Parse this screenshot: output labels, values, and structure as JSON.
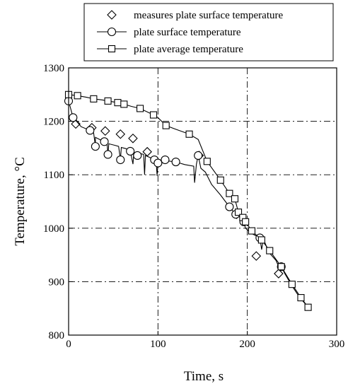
{
  "chart_data": {
    "type": "scatter",
    "title": "",
    "xlabel": "Time, s",
    "ylabel": "Temperature, °C",
    "xlim": [
      0,
      300
    ],
    "ylim": [
      800,
      1300
    ],
    "xticks": [
      "0",
      "100",
      "200",
      "300"
    ],
    "yticks": [
      "800",
      "900",
      "1000",
      "1100",
      "1200",
      "1300"
    ],
    "grid": "dash-dot",
    "legend_position": "top-right",
    "series": [
      {
        "name": "measures plate surface temperature",
        "marker": "diamond",
        "line": false,
        "points": [
          [
            8,
            1195
          ],
          [
            26,
            1188
          ],
          [
            41,
            1182
          ],
          [
            58,
            1176
          ],
          [
            72,
            1168
          ],
          [
            88,
            1143
          ],
          [
            146,
            1136
          ],
          [
            188,
            1026
          ],
          [
            210,
            948
          ],
          [
            235,
            915
          ]
        ]
      },
      {
        "name": "plate surface temperature",
        "marker": "circle",
        "line": true,
        "points": [
          [
            0,
            1238
          ],
          [
            5,
            1207
          ],
          [
            10,
            1198
          ],
          [
            14,
            1190
          ],
          [
            24,
            1183
          ],
          [
            28,
            1178
          ],
          [
            30,
            1153
          ],
          [
            30,
            1170
          ],
          [
            36,
            1165
          ],
          [
            40,
            1162
          ],
          [
            43,
            1160
          ],
          [
            44,
            1138
          ],
          [
            45,
            1158
          ],
          [
            52,
            1155
          ],
          [
            56,
            1153
          ],
          [
            58,
            1128
          ],
          [
            59,
            1151
          ],
          [
            64,
            1149
          ],
          [
            69,
            1144
          ],
          [
            72,
            1120
          ],
          [
            73,
            1142
          ],
          [
            77,
            1136
          ],
          [
            80,
            1140
          ],
          [
            84,
            1138
          ],
          [
            85,
            1100
          ],
          [
            86,
            1136
          ],
          [
            94,
            1130
          ],
          [
            96,
            1128
          ],
          [
            98,
            1125
          ],
          [
            99,
            1098
          ],
          [
            100,
            1122
          ],
          [
            104,
            1126
          ],
          [
            108,
            1128
          ],
          [
            110,
            1126
          ],
          [
            120,
            1124
          ],
          [
            130,
            1119
          ],
          [
            140,
            1116
          ],
          [
            141,
            1085
          ],
          [
            143,
            1120
          ],
          [
            145,
            1136
          ],
          [
            148,
            1112
          ],
          [
            153,
            1105
          ],
          [
            160,
            1082
          ],
          [
            170,
            1062
          ],
          [
            180,
            1040
          ],
          [
            187,
            1026
          ],
          [
            192,
            1020
          ],
          [
            196,
            1012
          ],
          [
            198,
            1000
          ],
          [
            205,
            990
          ],
          [
            214,
            982
          ],
          [
            216,
            960
          ],
          [
            218,
            980
          ],
          [
            224,
            955
          ],
          [
            232,
            940
          ],
          [
            236,
            925
          ],
          [
            238,
            928
          ],
          [
            242,
            915
          ],
          [
            250,
            892
          ],
          [
            258,
            872
          ],
          [
            268,
            852
          ]
        ]
      },
      {
        "name": "plate average temperature",
        "marker": "square",
        "line": true,
        "points": [
          [
            0,
            1250
          ],
          [
            10,
            1248
          ],
          [
            20,
            1245
          ],
          [
            28,
            1242
          ],
          [
            38,
            1240
          ],
          [
            44,
            1238
          ],
          [
            55,
            1235
          ],
          [
            62,
            1232
          ],
          [
            70,
            1228
          ],
          [
            80,
            1224
          ],
          [
            95,
            1212
          ],
          [
            100,
            1207
          ],
          [
            109,
            1192
          ],
          [
            120,
            1185
          ],
          [
            135,
            1176
          ],
          [
            145,
            1166
          ],
          [
            155,
            1125
          ],
          [
            170,
            1090
          ],
          [
            180,
            1065
          ],
          [
            186,
            1055
          ],
          [
            190,
            1030
          ],
          [
            195,
            1020
          ],
          [
            198,
            1012
          ],
          [
            205,
            995
          ],
          [
            216,
            978
          ],
          [
            225,
            958
          ],
          [
            238,
            928
          ],
          [
            250,
            895
          ],
          [
            260,
            870
          ],
          [
            268,
            852
          ]
        ]
      }
    ]
  }
}
